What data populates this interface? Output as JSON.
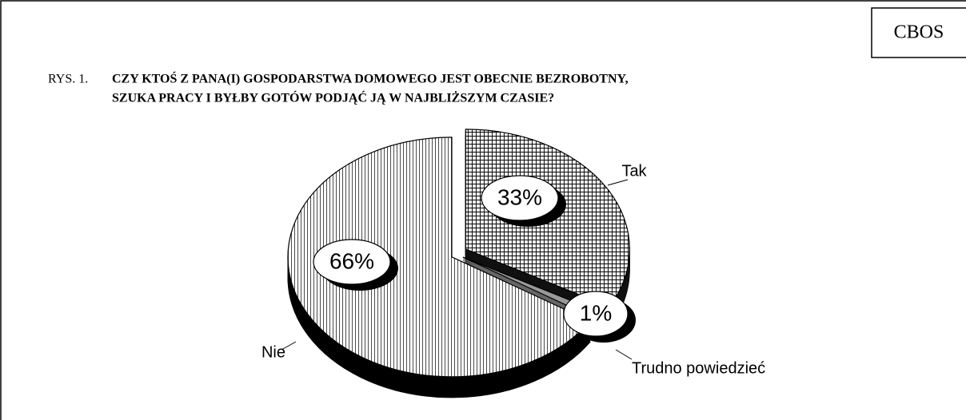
{
  "header": {
    "badge": "CBOS"
  },
  "chart_data": {
    "type": "pie",
    "figure_label": "RYS. 1.",
    "title_lines": [
      "CZY KTOŚ Z PANA(I) GOSPODARSTWA DOMOWEGO JEST OBECNIE BEZROBOTNY,",
      "SZUKA PRACY I BYŁBY GOTÓW PODJĄĆ JĄ W NAJBLIŻSZYM CZASIE?"
    ],
    "categories": [
      "Tak",
      "Trudno powiedzieć",
      "Nie"
    ],
    "values": [
      33,
      1,
      66
    ],
    "value_labels": [
      "33%",
      "1%",
      "66%"
    ]
  }
}
